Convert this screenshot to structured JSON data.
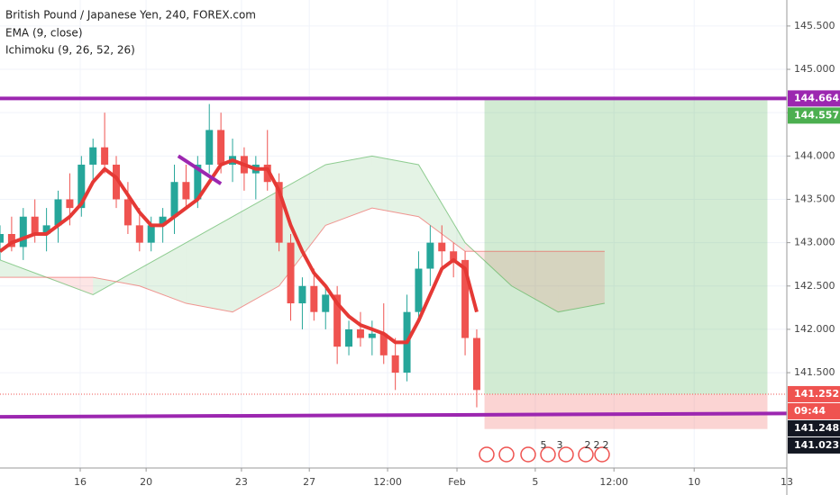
{
  "chart_data": {
    "type": "candlestick",
    "title": "British Pound / Japanese Yen, 240, FOREX.com",
    "indicators": [
      "EMA (9, close)",
      "Ichimoku (9, 26, 52, 26)"
    ],
    "xlim": [
      0,
      203
    ],
    "ylim": [
      140.4,
      145.8
    ],
    "yticks": [
      {
        "value": 141.5,
        "label": "141.500"
      },
      {
        "value": 142,
        "label": "142.000"
      },
      {
        "value": 142.5,
        "label": "142.500"
      },
      {
        "value": 143,
        "label": "143.000"
      },
      {
        "value": 143.5,
        "label": "143.500"
      },
      {
        "value": 144,
        "label": "144.000"
      },
      {
        "value": 144.5,
        "label": "144.500"
      },
      {
        "value": 145,
        "label": "145.000"
      },
      {
        "value": 145.5,
        "label": "145.500"
      }
    ],
    "xticks": [
      {
        "value": 20.7,
        "label": "16"
      },
      {
        "value": 37.7,
        "label": "20"
      },
      {
        "value": 62.3,
        "label": "23"
      },
      {
        "value": 79.8,
        "label": "27"
      },
      {
        "value": 100,
        "label": "12:00"
      },
      {
        "value": 117.9,
        "label": "Feb"
      },
      {
        "value": 138.1,
        "label": "5"
      },
      {
        "value": 158.4,
        "label": "12:00"
      },
      {
        "value": 179.1,
        "label": "10"
      },
      {
        "value": 203,
        "label": "13"
      }
    ],
    "x": [
      0,
      3,
      6,
      9,
      12,
      15,
      18,
      21,
      24,
      27,
      30,
      33,
      36,
      39,
      42,
      45,
      48,
      51,
      54,
      57,
      60,
      63,
      66,
      69,
      72,
      75,
      78,
      81,
      84,
      87,
      90,
      93,
      96,
      99,
      102,
      105,
      108,
      111,
      114,
      117,
      120,
      123
    ],
    "open": [
      143.0,
      143.1,
      142.95,
      143.3,
      143.1,
      143.2,
      143.5,
      143.4,
      143.9,
      144.1,
      143.9,
      143.5,
      143.2,
      143.0,
      143.2,
      143.3,
      143.7,
      143.5,
      143.9,
      144.3,
      143.9,
      144.0,
      143.8,
      143.9,
      143.7,
      143.0,
      142.3,
      142.5,
      142.2,
      142.4,
      141.8,
      142.0,
      141.9,
      141.95,
      141.7,
      141.5,
      142.2,
      142.7,
      143.0,
      142.9,
      142.8,
      141.9
    ],
    "high": [
      143.2,
      143.3,
      143.4,
      143.5,
      143.4,
      143.6,
      143.8,
      144.0,
      144.2,
      144.5,
      144.0,
      143.7,
      143.4,
      143.3,
      143.4,
      143.9,
      143.9,
      144.0,
      144.6,
      144.5,
      144.2,
      144.1,
      144.0,
      144.3,
      143.8,
      143.1,
      142.6,
      142.7,
      142.5,
      142.5,
      142.1,
      142.2,
      142.1,
      142.3,
      141.9,
      142.4,
      142.9,
      143.2,
      143.2,
      143.0,
      142.9,
      142.0
    ],
    "low": [
      142.8,
      142.9,
      142.8,
      143.0,
      142.9,
      143.0,
      143.2,
      143.3,
      143.7,
      143.8,
      143.4,
      143.1,
      142.9,
      142.9,
      143.0,
      143.1,
      143.4,
      143.4,
      143.8,
      143.8,
      143.7,
      143.6,
      143.5,
      143.6,
      142.9,
      142.1,
      142.0,
      142.1,
      142.0,
      141.6,
      141.7,
      141.8,
      141.7,
      141.6,
      141.3,
      141.4,
      142.1,
      142.5,
      142.7,
      142.6,
      141.7,
      141.1
    ],
    "close": [
      143.1,
      142.95,
      143.3,
      143.1,
      143.2,
      143.5,
      143.4,
      143.9,
      144.1,
      143.9,
      143.5,
      143.2,
      143.0,
      143.2,
      143.3,
      143.7,
      143.5,
      143.9,
      144.3,
      143.9,
      144.0,
      143.8,
      143.9,
      143.7,
      143.0,
      142.3,
      142.5,
      142.2,
      142.4,
      141.8,
      142.0,
      141.9,
      141.95,
      141.7,
      141.5,
      142.2,
      142.7,
      143.0,
      142.9,
      142.8,
      141.9,
      141.3
    ],
    "up_color": "#26a69a",
    "down_color": "#ef5350",
    "ema": {
      "color": "#e53935",
      "values": [
        142.9,
        143.0,
        143.05,
        143.1,
        143.1,
        143.2,
        143.3,
        143.45,
        143.7,
        143.85,
        143.75,
        143.55,
        143.35,
        143.2,
        143.2,
        143.3,
        143.4,
        143.5,
        143.7,
        143.9,
        143.95,
        143.9,
        143.85,
        143.85,
        143.6,
        143.2,
        142.9,
        142.65,
        142.5,
        142.3,
        142.15,
        142.05,
        142.0,
        141.95,
        141.85,
        141.85,
        142.1,
        142.4,
        142.7,
        142.8,
        142.7,
        142.2
      ]
    },
    "cloud": {
      "x": [
        0,
        12,
        24,
        36,
        48,
        60,
        72,
        84,
        96,
        108,
        120,
        132,
        144,
        156
      ],
      "span_a": [
        142.8,
        142.6,
        142.4,
        142.7,
        143.0,
        143.3,
        143.6,
        143.9,
        144.0,
        143.9,
        143.0,
        142.5,
        142.2,
        142.3
      ],
      "span_b": [
        142.6,
        142.6,
        142.6,
        142.5,
        142.3,
        142.2,
        142.5,
        143.2,
        143.4,
        143.3,
        142.9,
        142.9,
        142.9,
        142.9
      ],
      "up_color": "#4caf50",
      "down_color": "#ef5350"
    },
    "levels": [
      {
        "value": 144.664,
        "color": "#9c27b0"
      }
    ],
    "trendlines": [
      {
        "x": [
          0,
          203
        ],
        "y": [
          140.99,
          141.03
        ],
        "color": "#9c27b0"
      },
      {
        "x": [
          46,
          57
        ],
        "y": [
          144.0,
          143.68
        ],
        "color": "#9c27b0"
      }
    ],
    "position": {
      "x": [
        125,
        198
      ],
      "entry": 141.252,
      "target": 144.664,
      "stop": 140.85
    },
    "price_labels": [
      {
        "value": 144.664,
        "label": "144.664",
        "color": "#9c27b0"
      },
      {
        "value": 144.557,
        "label": "144.557",
        "color": "#4caf50"
      },
      {
        "value": 141.252,
        "label": "141.252",
        "color": "#ef5350"
      },
      {
        "value": 141.248,
        "label": "141.248",
        "color": "#131722"
      },
      {
        "value": 141.023,
        "label": "141.023",
        "color": "#131722"
      }
    ],
    "countdown": "09:44",
    "event_badges": [
      "5",
      "3",
      "2",
      "2",
      "2"
    ]
  }
}
